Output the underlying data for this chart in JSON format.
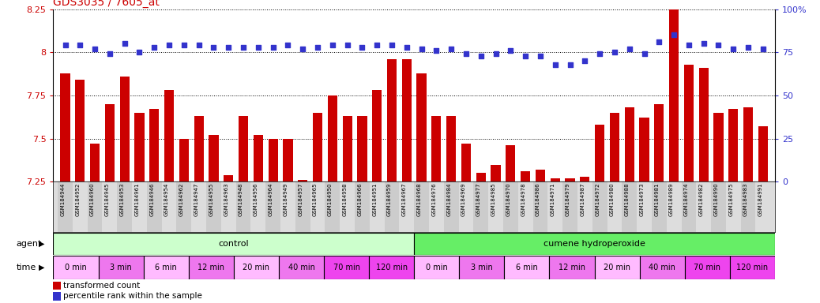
{
  "title": "GDS3035 / 7605_at",
  "samples": [
    "GSM184944",
    "GSM184952",
    "GSM184960",
    "GSM184945",
    "GSM184953",
    "GSM184961",
    "GSM184946",
    "GSM184954",
    "GSM184962",
    "GSM184947",
    "GSM184955",
    "GSM184963",
    "GSM184948",
    "GSM184956",
    "GSM184964",
    "GSM184949",
    "GSM184957",
    "GSM184965",
    "GSM184950",
    "GSM184958",
    "GSM184966",
    "GSM184951",
    "GSM184959",
    "GSM184967",
    "GSM184968",
    "GSM184976",
    "GSM184984",
    "GSM184969",
    "GSM184977",
    "GSM184985",
    "GSM184970",
    "GSM184978",
    "GSM184986",
    "GSM184971",
    "GSM184979",
    "GSM184987",
    "GSM184972",
    "GSM184980",
    "GSM184988",
    "GSM184973",
    "GSM184981",
    "GSM184989",
    "GSM184974",
    "GSM184982",
    "GSM184990",
    "GSM184975",
    "GSM184983",
    "GSM184991"
  ],
  "bar_values": [
    7.88,
    7.84,
    7.47,
    7.7,
    7.86,
    7.65,
    7.67,
    7.78,
    7.5,
    7.63,
    7.52,
    7.29,
    7.63,
    7.52,
    7.5,
    7.5,
    7.26,
    7.65,
    7.75,
    7.63,
    7.63,
    7.78,
    7.96,
    7.96,
    7.88,
    7.63,
    7.63,
    7.47,
    7.3,
    7.35,
    7.46,
    7.31,
    7.32,
    7.27,
    7.27,
    7.28,
    7.58,
    7.65,
    7.68,
    7.62,
    7.7,
    8.25,
    7.93,
    7.91,
    7.65,
    7.67,
    7.68,
    7.57
  ],
  "percentile_values": [
    79,
    79,
    77,
    74,
    80,
    75,
    78,
    79,
    79,
    79,
    78,
    78,
    78,
    78,
    78,
    79,
    77,
    78,
    79,
    79,
    78,
    79,
    79,
    78,
    77,
    76,
    77,
    74,
    73,
    74,
    76,
    73,
    73,
    68,
    68,
    70,
    74,
    75,
    77,
    74,
    81,
    85,
    79,
    80,
    79,
    77,
    78,
    77
  ],
  "ylim_left": [
    7.25,
    8.25
  ],
  "ylim_right": [
    0,
    100
  ],
  "yticks_left": [
    7.25,
    7.5,
    7.75,
    8.0,
    8.25
  ],
  "ytick_labels_left": [
    "7.25",
    "7.5",
    "7.75",
    "8",
    "8.25"
  ],
  "yticks_right": [
    0,
    25,
    50,
    75,
    100
  ],
  "ytick_labels_right": [
    "0",
    "25",
    "50",
    "75",
    "100%"
  ],
  "bar_color": "#CC0000",
  "dot_color": "#3333CC",
  "title_color": "#CC0000",
  "left_tick_color": "#CC0000",
  "right_tick_color": "#3333CC",
  "agent_groups": [
    {
      "label": "control",
      "start": 0,
      "end": 24,
      "color": "#CCFFCC"
    },
    {
      "label": "cumene hydroperoxide",
      "start": 24,
      "end": 48,
      "color": "#66EE66"
    }
  ],
  "time_groups": [
    {
      "label": "0 min",
      "start": 0,
      "end": 3,
      "color": "#FFBBFF"
    },
    {
      "label": "3 min",
      "start": 3,
      "end": 6,
      "color": "#EE77EE"
    },
    {
      "label": "6 min",
      "start": 6,
      "end": 9,
      "color": "#FFBBFF"
    },
    {
      "label": "12 min",
      "start": 9,
      "end": 12,
      "color": "#EE77EE"
    },
    {
      "label": "20 min",
      "start": 12,
      "end": 15,
      "color": "#FFBBFF"
    },
    {
      "label": "40 min",
      "start": 15,
      "end": 18,
      "color": "#EE77EE"
    },
    {
      "label": "70 min",
      "start": 18,
      "end": 21,
      "color": "#EE44EE"
    },
    {
      "label": "120 min",
      "start": 21,
      "end": 24,
      "color": "#EE44EE"
    },
    {
      "label": "0 min",
      "start": 24,
      "end": 27,
      "color": "#FFBBFF"
    },
    {
      "label": "3 min",
      "start": 27,
      "end": 30,
      "color": "#EE77EE"
    },
    {
      "label": "6 min",
      "start": 30,
      "end": 33,
      "color": "#FFBBFF"
    },
    {
      "label": "12 min",
      "start": 33,
      "end": 36,
      "color": "#EE77EE"
    },
    {
      "label": "20 min",
      "start": 36,
      "end": 39,
      "color": "#FFBBFF"
    },
    {
      "label": "40 min",
      "start": 39,
      "end": 42,
      "color": "#EE77EE"
    },
    {
      "label": "70 min",
      "start": 42,
      "end": 45,
      "color": "#EE44EE"
    },
    {
      "label": "120 min",
      "start": 45,
      "end": 48,
      "color": "#EE44EE"
    }
  ],
  "n_samples": 48,
  "bar_width": 0.65,
  "fig_width": 10.38,
  "fig_height": 3.84,
  "dpi": 100
}
